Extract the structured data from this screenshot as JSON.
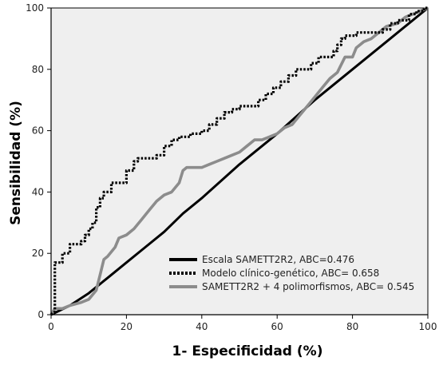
{
  "chart_data": {
    "type": "line",
    "xlabel": "1- Especificidad (%)",
    "ylabel": "Sensibilidad (%)",
    "xlim": [
      0,
      100
    ],
    "ylim": [
      0,
      100
    ],
    "x_ticks": [
      0,
      20,
      40,
      60,
      80,
      100
    ],
    "y_ticks": [
      0,
      20,
      40,
      60,
      80,
      100
    ],
    "grid": false,
    "legend_position": "bottom-right",
    "colors": {
      "plot_background": "#efefef",
      "axis": "#000000",
      "series_1": "#000000",
      "series_2": "#000000",
      "series_3": "#8c8c8c"
    },
    "series": [
      {
        "name": "Escala SAMETT2R2, ABC=0.476",
        "style": "solid",
        "points": [
          [
            0,
            0
          ],
          [
            5,
            3
          ],
          [
            10,
            7
          ],
          [
            15,
            12
          ],
          [
            20,
            17
          ],
          [
            25,
            22
          ],
          [
            30,
            27
          ],
          [
            35,
            33
          ],
          [
            40,
            38
          ],
          [
            50,
            49
          ],
          [
            60,
            59
          ],
          [
            70,
            70
          ],
          [
            80,
            80
          ],
          [
            90,
            90
          ],
          [
            100,
            100
          ]
        ]
      },
      {
        "name": "Modelo clínico-genético, ABC= 0.658",
        "style": "dotted",
        "points": [
          [
            0,
            0
          ],
          [
            1,
            1
          ],
          [
            1,
            8
          ],
          [
            1,
            17
          ],
          [
            3,
            17
          ],
          [
            3,
            20
          ],
          [
            5,
            20
          ],
          [
            5,
            23
          ],
          [
            8,
            23
          ],
          [
            8,
            24
          ],
          [
            9,
            24
          ],
          [
            9,
            26
          ],
          [
            10,
            26
          ],
          [
            10,
            28
          ],
          [
            11,
            28
          ],
          [
            11,
            30
          ],
          [
            12,
            30
          ],
          [
            12,
            35
          ],
          [
            13,
            35
          ],
          [
            13,
            38
          ],
          [
            14,
            38
          ],
          [
            14,
            40
          ],
          [
            16,
            40
          ],
          [
            16,
            43
          ],
          [
            20,
            43
          ],
          [
            20,
            47
          ],
          [
            22,
            47
          ],
          [
            22,
            50
          ],
          [
            23,
            50
          ],
          [
            23,
            51
          ],
          [
            28,
            51
          ],
          [
            28,
            52
          ],
          [
            30,
            52
          ],
          [
            30,
            55
          ],
          [
            32,
            55
          ],
          [
            32,
            57
          ],
          [
            34,
            57
          ],
          [
            34,
            58
          ],
          [
            37,
            58
          ],
          [
            37,
            59
          ],
          [
            40,
            59
          ],
          [
            40,
            60
          ],
          [
            42,
            60
          ],
          [
            42,
            62
          ],
          [
            44,
            62
          ],
          [
            44,
            64
          ],
          [
            46,
            64
          ],
          [
            46,
            66
          ],
          [
            48,
            66
          ],
          [
            48,
            67
          ],
          [
            50,
            67
          ],
          [
            50,
            68
          ],
          [
            55,
            68
          ],
          [
            55,
            70
          ],
          [
            57,
            70
          ],
          [
            57,
            72
          ],
          [
            59,
            72
          ],
          [
            59,
            74
          ],
          [
            61,
            74
          ],
          [
            61,
            76
          ],
          [
            63,
            76
          ],
          [
            63,
            78
          ],
          [
            65,
            78
          ],
          [
            65,
            80
          ],
          [
            69,
            80
          ],
          [
            69,
            82
          ],
          [
            71,
            82
          ],
          [
            71,
            84
          ],
          [
            75,
            84
          ],
          [
            75,
            86
          ],
          [
            76,
            86
          ],
          [
            76,
            88
          ],
          [
            77,
            88
          ],
          [
            77,
            90
          ],
          [
            78,
            90
          ],
          [
            78,
            91
          ],
          [
            81,
            91
          ],
          [
            81,
            92
          ],
          [
            88,
            92
          ],
          [
            88,
            93
          ],
          [
            90,
            93
          ],
          [
            90,
            95
          ],
          [
            92,
            95
          ],
          [
            92,
            96
          ],
          [
            95,
            96
          ],
          [
            95,
            98
          ],
          [
            97,
            98
          ],
          [
            97,
            99
          ],
          [
            99,
            99
          ],
          [
            99,
            100
          ],
          [
            100,
            100
          ]
        ]
      },
      {
        "name": "SAMETT2R2 + 4 polimorfismos, ABC= 0.545",
        "style": "solid",
        "points": [
          [
            0,
            0
          ],
          [
            0.5,
            1
          ],
          [
            1,
            2
          ],
          [
            3,
            2
          ],
          [
            5,
            3
          ],
          [
            8,
            4
          ],
          [
            10,
            5
          ],
          [
            12,
            8
          ],
          [
            13,
            13
          ],
          [
            14,
            18
          ],
          [
            15,
            19
          ],
          [
            17,
            22
          ],
          [
            18,
            25
          ],
          [
            20,
            26
          ],
          [
            22,
            28
          ],
          [
            24,
            31
          ],
          [
            26,
            34
          ],
          [
            28,
            37
          ],
          [
            30,
            39
          ],
          [
            32,
            40
          ],
          [
            34,
            43
          ],
          [
            35,
            47
          ],
          [
            36,
            48
          ],
          [
            38,
            48
          ],
          [
            40,
            48
          ],
          [
            42,
            49
          ],
          [
            44,
            50
          ],
          [
            46,
            51
          ],
          [
            48,
            52
          ],
          [
            50,
            53
          ],
          [
            52,
            55
          ],
          [
            54,
            57
          ],
          [
            56,
            57
          ],
          [
            58,
            58
          ],
          [
            60,
            59
          ],
          [
            62,
            61
          ],
          [
            64,
            62
          ],
          [
            66,
            65
          ],
          [
            68,
            68
          ],
          [
            70,
            71
          ],
          [
            72,
            74
          ],
          [
            74,
            77
          ],
          [
            76,
            79
          ],
          [
            78,
            84
          ],
          [
            80,
            84
          ],
          [
            81,
            87
          ],
          [
            83,
            89
          ],
          [
            85,
            90
          ],
          [
            87,
            92
          ],
          [
            89,
            94
          ],
          [
            92,
            95
          ],
          [
            94,
            97
          ],
          [
            96,
            98
          ],
          [
            98,
            99
          ],
          [
            100,
            100
          ]
        ]
      }
    ]
  }
}
